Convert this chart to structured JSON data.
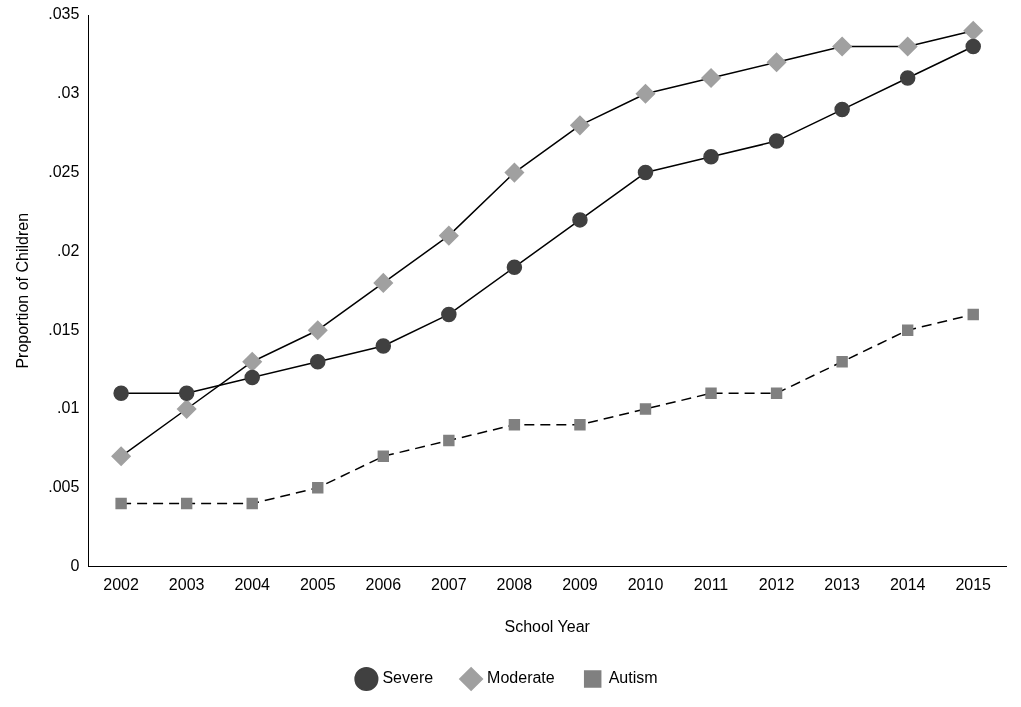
{
  "chart_data": {
    "type": "line",
    "xlabel": "School Year",
    "ylabel": "Proportion of Children",
    "categories": [
      "2002",
      "2003",
      "2004",
      "2005",
      "2006",
      "2007",
      "2008",
      "2009",
      "2010",
      "2011",
      "2012",
      "2013",
      "2014",
      "2015"
    ],
    "ylim": [
      0,
      0.035
    ],
    "yticks": [
      0,
      {
        "value": 0.005,
        "label": ".005"
      },
      {
        "value": 0.01,
        "label": ".01"
      },
      {
        "value": 0.015,
        "label": ".015"
      },
      {
        "value": 0.02,
        "label": ".02"
      },
      {
        "value": 0.025,
        "label": ".025"
      },
      {
        "value": 0.03,
        "label": ".03"
      },
      {
        "value": 0.035,
        "label": ".035"
      }
    ],
    "grid": false,
    "legend": "bottom",
    "series": [
      {
        "name": "Severe",
        "color": "#404040",
        "marker": "circle",
        "line_style": "solid",
        "values": [
          0.011,
          0.011,
          0.012,
          0.013,
          0.014,
          0.016,
          0.019,
          0.022,
          0.025,
          0.026,
          0.027,
          0.029,
          0.031,
          0.033
        ]
      },
      {
        "name": "Moderate",
        "color": "#a0a0a0",
        "marker": "diamond",
        "line_style": "solid",
        "values": [
          0.007,
          0.01,
          0.013,
          0.015,
          0.018,
          0.021,
          0.025,
          0.028,
          0.03,
          0.031,
          0.032,
          0.033,
          0.033,
          0.034
        ]
      },
      {
        "name": "Autism",
        "color": "#808080",
        "marker": "square",
        "line_style": "dashed",
        "values": [
          0.004,
          0.004,
          0.004,
          0.005,
          0.007,
          0.008,
          0.009,
          0.009,
          0.01,
          0.011,
          0.011,
          0.013,
          0.015,
          0.016
        ]
      }
    ]
  }
}
